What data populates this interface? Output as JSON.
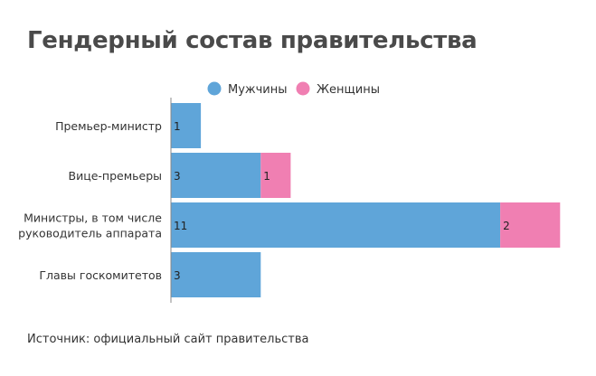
{
  "chart_data": {
    "type": "bar",
    "orientation": "horizontal",
    "stacked": true,
    "title": "Гендерный состав правительства",
    "source": "Источник: официальный сайт правительства",
    "categories": [
      [
        "Премьер-министр"
      ],
      [
        "Вице-премьеры"
      ],
      [
        "Министры, в том числе",
        "руководитель аппарата"
      ],
      [
        "Главы госкомитетов"
      ]
    ],
    "series": [
      {
        "name": "Мужчины",
        "color": "#5fa5d9",
        "values": [
          1,
          3,
          11,
          3
        ]
      },
      {
        "name": "Женщины",
        "color": "#f07fb2",
        "values": [
          0,
          1,
          2,
          0
        ]
      }
    ],
    "xlim": [
      0,
      13
    ],
    "legend_position": "top",
    "grid": false
  }
}
